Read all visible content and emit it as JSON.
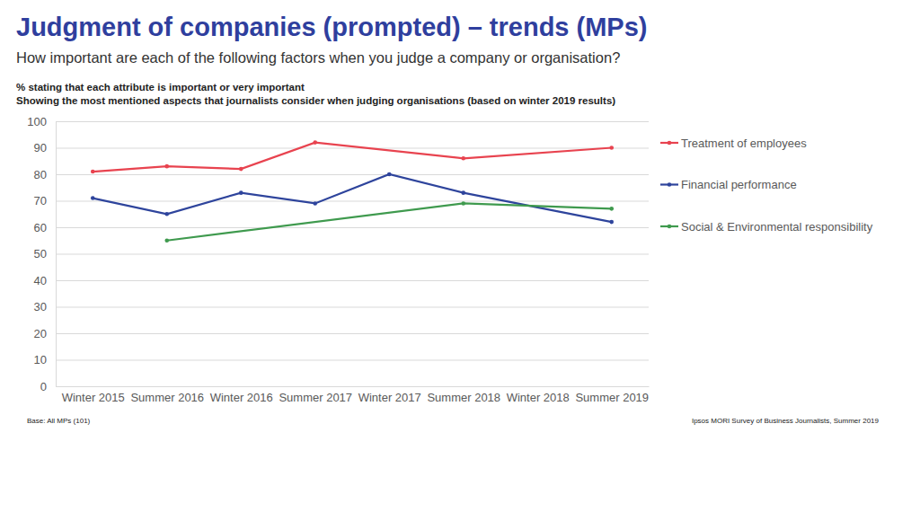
{
  "chart_data": {
    "type": "line",
    "title": "Judgment of companies (prompted) – trends (MPs)",
    "subtitle": "How important are each of the following factors when you judge a company or organisation?",
    "annotations": [
      "% stating that each attribute is important or very important",
      "Showing the most mentioned aspects that journalists consider when judging organisations (based on winter 2019 results)",
      "Base: All MPs (101)",
      "Ipsos MORI Survey of Business Journalists, Summer 2019"
    ],
    "categories": [
      "Winter 2015",
      "Summer 2016",
      "Winter 2016",
      "Summer 2017",
      "Winter 2017",
      "Summer 2018",
      "Winter 2018",
      "Summer 2019"
    ],
    "series": [
      {
        "name": "Treatment of employees",
        "color": "#e8434f",
        "values": [
          81,
          83,
          82,
          92,
          null,
          86,
          null,
          90
        ]
      },
      {
        "name": "Financial performance",
        "color": "#2e449c",
        "values": [
          71,
          65,
          73,
          69,
          80,
          73,
          null,
          62
        ]
      },
      {
        "name": "Social & Environmental responsibility",
        "color": "#3f9a4e",
        "values": [
          null,
          55,
          null,
          null,
          null,
          69,
          null,
          67
        ]
      }
    ],
    "ylim": [
      0,
      100
    ],
    "yticks": [
      0,
      10,
      20,
      30,
      40,
      50,
      60,
      70,
      80,
      90,
      100
    ],
    "grid": true,
    "legend": "right",
    "marker": "circle"
  }
}
